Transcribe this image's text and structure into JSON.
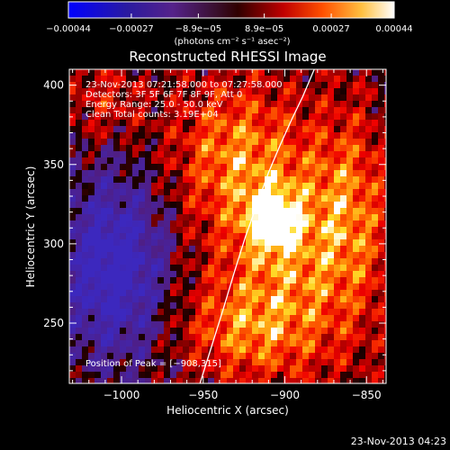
{
  "colors": {
    "background": "#000000",
    "foreground": "#ffffff",
    "colormap": "red-temperature (blue-purple negative to white positive)"
  },
  "colorbar": {
    "tick_labels": [
      "−0.00044",
      "−0.00027",
      "−8.9e−05",
      "8.9e−05",
      "0.00027",
      "0.00044"
    ],
    "tick_values": [
      -0.00044,
      -0.00027,
      -8.9e-05,
      8.9e-05,
      0.00027,
      0.00044
    ],
    "range": [
      -0.00044,
      0.00044
    ],
    "units": "(photons cm⁻² s⁻¹ asec⁻²)"
  },
  "chart_data": {
    "type": "heatmap",
    "title": "Reconstructed RHESSI Image",
    "xlabel": "Heliocentric X (arcsec)",
    "ylabel": "Heliocentric Y (arcsec)",
    "xlim": [
      -1032,
      -838
    ],
    "ylim": [
      212,
      410
    ],
    "xticks": [
      -1000,
      -950,
      -900,
      -850
    ],
    "yticks": [
      250,
      300,
      350,
      400
    ],
    "x_tick_labels": [
      "−1000",
      "−950",
      "−900",
      "−850"
    ],
    "y_tick_labels": [
      "250",
      "300",
      "350",
      "400"
    ],
    "limb_line": {
      "x": [
        -952,
        -945,
        -938,
        -931,
        -924,
        -917,
        -910,
        -903,
        -896,
        -889,
        -882
      ],
      "y": [
        212,
        235,
        258,
        282,
        305,
        325,
        345,
        362,
        378,
        393,
        410
      ]
    },
    "peak": {
      "x": -908,
      "y": 315
    },
    "annotations": {
      "time_range": "23-Nov-2013 07:21:58.000 to 07:27:58.000",
      "detectors": "Detectors: 3F 5F 6F 7F 8F 9F, Att 0",
      "energy": "Energy Range: 25.0 - 50.0 keV",
      "method_and_counts": "Clean    Total counts: 3.19E+04",
      "peak_position": "Position of Peak = [−908,315]"
    }
  },
  "footer_timestamp": "23-Nov-2013 04:23"
}
